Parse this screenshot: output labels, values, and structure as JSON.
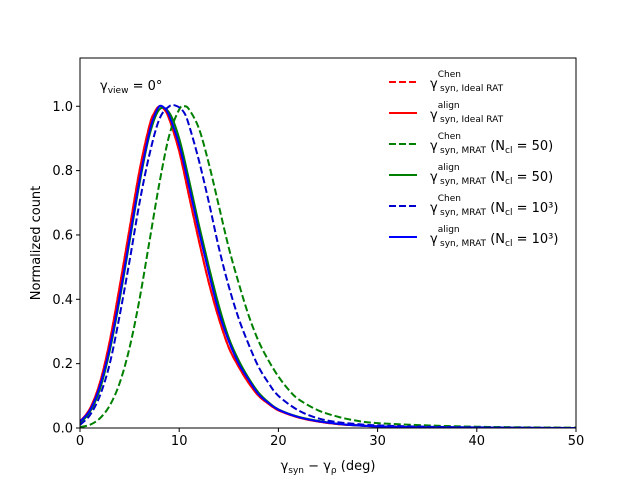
{
  "chart_data": {
    "type": "line",
    "xlabel_main": "γ",
    "xlabel_sub1": "syn",
    "xlabel_mid": " − γ",
    "xlabel_sub2": "ρ",
    "xlabel_unit": " (deg)",
    "ylabel": "Normalized count",
    "annotation": {
      "main": "γ",
      "sub": "view",
      "rest": " = 0°"
    },
    "xlim": [
      0,
      50
    ],
    "ylim": [
      0,
      1.15
    ],
    "xticks": [
      0,
      10,
      20,
      30,
      40,
      50
    ],
    "yticks": [
      0.0,
      0.2,
      0.4,
      0.6,
      0.8,
      1.0
    ],
    "ytick_labels": [
      "0.0",
      "0.2",
      "0.4",
      "0.6",
      "0.8",
      "1.0"
    ],
    "xtick_labels": [
      "0",
      "10",
      "20",
      "30",
      "40",
      "50"
    ],
    "legend_position": "top-right",
    "series": [
      {
        "name": "Chen, Ideal RAT",
        "legend": {
          "sup": "Chen",
          "sub": "syn, Ideal RAT",
          "suffix": ""
        },
        "color": "#ff0000",
        "dashed": true,
        "x": [
          0,
          1,
          2,
          3,
          4,
          5,
          6,
          7,
          7.5,
          8,
          8.5,
          9,
          10,
          11,
          12,
          13,
          14,
          15,
          16,
          17,
          18,
          19,
          20,
          22,
          24,
          26,
          28,
          30,
          35,
          40,
          45,
          50
        ],
        "y": [
          0.02,
          0.06,
          0.14,
          0.27,
          0.44,
          0.62,
          0.8,
          0.94,
          0.98,
          1.0,
          0.99,
          0.96,
          0.86,
          0.72,
          0.58,
          0.45,
          0.34,
          0.25,
          0.19,
          0.14,
          0.1,
          0.075,
          0.055,
          0.033,
          0.02,
          0.012,
          0.008,
          0.005,
          0.002,
          0.001,
          0.0,
          0.0
        ]
      },
      {
        "name": "align, Ideal RAT",
        "legend": {
          "sup": "align",
          "sub": "syn, Ideal RAT",
          "suffix": ""
        },
        "color": "#ff0000",
        "dashed": false,
        "x": [
          0,
          1,
          2,
          3,
          4,
          5,
          6,
          7,
          7.5,
          8,
          8.5,
          9,
          10,
          11,
          12,
          13,
          14,
          15,
          16,
          17,
          18,
          19,
          20,
          22,
          24,
          26,
          28,
          30,
          35,
          40,
          45,
          50
        ],
        "y": [
          0.02,
          0.06,
          0.14,
          0.27,
          0.44,
          0.62,
          0.8,
          0.94,
          0.98,
          1.0,
          0.99,
          0.96,
          0.86,
          0.72,
          0.58,
          0.45,
          0.34,
          0.25,
          0.19,
          0.14,
          0.1,
          0.075,
          0.055,
          0.033,
          0.02,
          0.012,
          0.008,
          0.005,
          0.002,
          0.001,
          0.0,
          0.0
        ]
      },
      {
        "name": "Chen, MRAT N_cl=50",
        "legend": {
          "sup": "Chen",
          "sub": "syn, MRAT",
          "suffix": "50"
        },
        "color": "#008000",
        "dashed": true,
        "x": [
          0,
          1,
          2,
          3,
          4,
          5,
          6,
          7,
          8,
          9,
          10,
          10.5,
          11,
          12,
          13,
          14,
          15,
          16,
          17,
          18,
          19,
          20,
          21,
          22,
          24,
          26,
          28,
          30,
          35,
          40,
          45,
          50
        ],
        "y": [
          0.003,
          0.01,
          0.03,
          0.07,
          0.14,
          0.25,
          0.4,
          0.58,
          0.76,
          0.91,
          0.99,
          1.0,
          0.99,
          0.93,
          0.82,
          0.69,
          0.56,
          0.45,
          0.35,
          0.27,
          0.21,
          0.16,
          0.12,
          0.09,
          0.055,
          0.035,
          0.022,
          0.015,
          0.008,
          0.004,
          0.002,
          0.001
        ]
      },
      {
        "name": "align, MRAT N_cl=50",
        "legend": {
          "sup": "align",
          "sub": "syn, MRAT",
          "suffix": "50"
        },
        "color": "#008000",
        "dashed": false,
        "x": [
          0,
          1,
          2,
          3,
          4,
          5,
          6,
          7,
          8,
          9,
          10,
          11,
          12,
          13,
          14,
          15,
          16,
          17,
          18,
          19,
          20,
          22,
          24,
          26,
          28,
          30,
          35,
          40,
          45,
          50
        ],
        "y": [
          0.015,
          0.05,
          0.12,
          0.24,
          0.4,
          0.58,
          0.76,
          0.91,
          0.99,
          0.98,
          0.9,
          0.77,
          0.63,
          0.5,
          0.38,
          0.28,
          0.21,
          0.155,
          0.11,
          0.08,
          0.058,
          0.035,
          0.022,
          0.013,
          0.008,
          0.005,
          0.002,
          0.001,
          0.0,
          0.0
        ]
      },
      {
        "name": "Chen, MRAT N_cl=10^3",
        "legend": {
          "sup": "Chen",
          "sub": "syn, MRAT",
          "suffix": "10³"
        },
        "color": "#0000cc",
        "dashed": true,
        "x": [
          0,
          1,
          2,
          3,
          4,
          5,
          6,
          7,
          8,
          9,
          9.8,
          10.5,
          11,
          12,
          13,
          14,
          15,
          16,
          17,
          18,
          19,
          20,
          22,
          24,
          26,
          28,
          30,
          35,
          40,
          45,
          50
        ],
        "y": [
          0.01,
          0.04,
          0.1,
          0.2,
          0.35,
          0.52,
          0.7,
          0.85,
          0.96,
          1.0,
          1.0,
          0.98,
          0.94,
          0.83,
          0.7,
          0.56,
          0.44,
          0.34,
          0.26,
          0.19,
          0.14,
          0.1,
          0.055,
          0.03,
          0.018,
          0.012,
          0.008,
          0.004,
          0.002,
          0.001,
          0.0
        ]
      },
      {
        "name": "align, MRAT N_cl=10^3",
        "legend": {
          "sup": "align",
          "sub": "syn, MRAT",
          "suffix": "10³"
        },
        "color": "#0000ff",
        "dashed": false,
        "x": [
          0,
          1,
          2,
          3,
          4,
          5,
          6,
          7,
          7.5,
          8,
          8.5,
          9,
          10,
          11,
          12,
          13,
          14,
          15,
          16,
          17,
          18,
          19,
          20,
          22,
          24,
          26,
          28,
          30,
          35,
          40,
          45,
          50
        ],
        "y": [
          0.02,
          0.055,
          0.13,
          0.25,
          0.41,
          0.59,
          0.77,
          0.92,
          0.97,
          1.0,
          0.995,
          0.97,
          0.88,
          0.75,
          0.61,
          0.48,
          0.36,
          0.27,
          0.2,
          0.15,
          0.105,
          0.078,
          0.057,
          0.034,
          0.021,
          0.013,
          0.008,
          0.005,
          0.002,
          0.001,
          0.0,
          0.0
        ]
      }
    ]
  },
  "legend_labels": {
    "gamma": "γ",
    "ncl_prefix": " (N",
    "ncl_sub": "cl",
    "ncl_eq": " = ",
    "ncl_close": ")"
  }
}
